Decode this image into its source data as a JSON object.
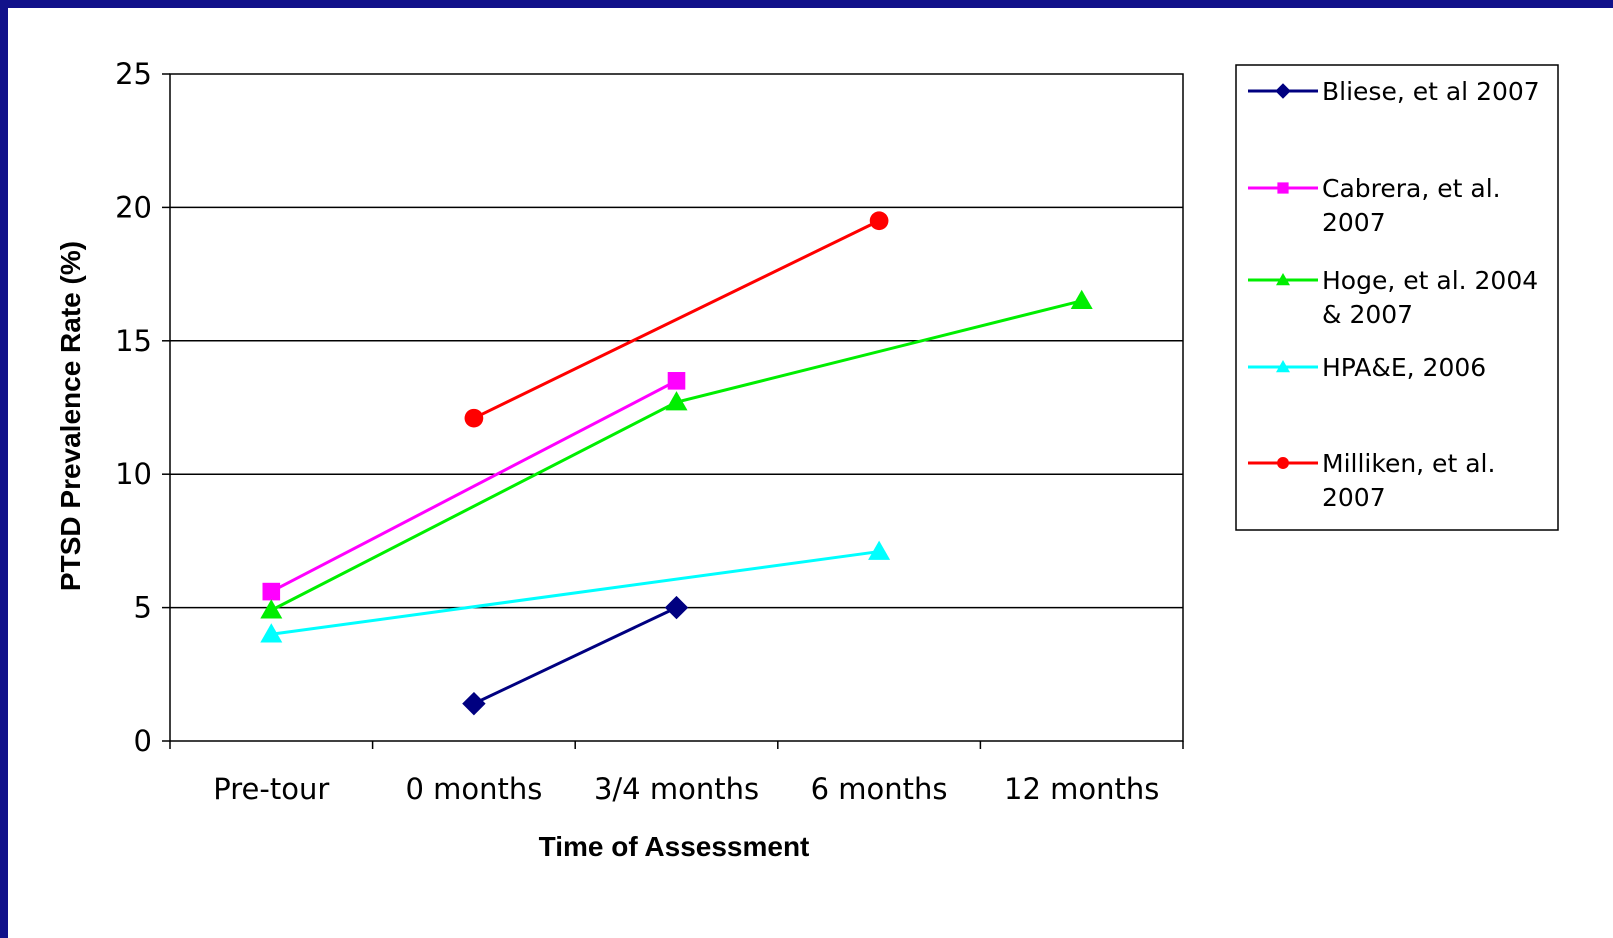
{
  "chart_data": {
    "type": "line",
    "categories": [
      "Pre-tour",
      "0 months",
      "3/4 months",
      "6 months",
      "12 months"
    ],
    "xlabel": "Time of Assessment",
    "ylabel": "PTSD Prevalence Rate (%)",
    "ylim": [
      0,
      25
    ],
    "yticks": [
      "0",
      "5",
      "10",
      "15",
      "20",
      "25"
    ],
    "grid": true,
    "legend_position": "right",
    "series": [
      {
        "name": "Bliese, et al 2007",
        "legend_lines": [
          "Bliese, et al 2007"
        ],
        "color": "#000080",
        "marker": "diamond",
        "values": [
          null,
          1.4,
          5.0,
          null,
          null
        ]
      },
      {
        "name": "Cabrera, et al. 2007",
        "legend_lines": [
          "Cabrera, et al.",
          "2007"
        ],
        "color": "#ff00ff",
        "marker": "square",
        "values": [
          5.6,
          null,
          13.5,
          null,
          null
        ]
      },
      {
        "name": "Hoge, et al. 2004 & 2007",
        "legend_lines": [
          "Hoge, et al. 2004",
          "& 2007"
        ],
        "color": "#00ee00",
        "marker": "triangle",
        "values": [
          4.9,
          null,
          12.7,
          null,
          16.5
        ]
      },
      {
        "name": "HPA&E, 2006",
        "legend_lines": [
          "HPA&E, 2006"
        ],
        "color": "#00ffff",
        "marker": "triangle",
        "values": [
          4.0,
          null,
          null,
          7.1,
          null
        ]
      },
      {
        "name": "Milliken, et al. 2007",
        "legend_lines": [
          "Milliken, et al.",
          "2007"
        ],
        "color": "#ff0000",
        "marker": "circle",
        "values": [
          null,
          12.1,
          null,
          19.5,
          null
        ]
      }
    ]
  }
}
